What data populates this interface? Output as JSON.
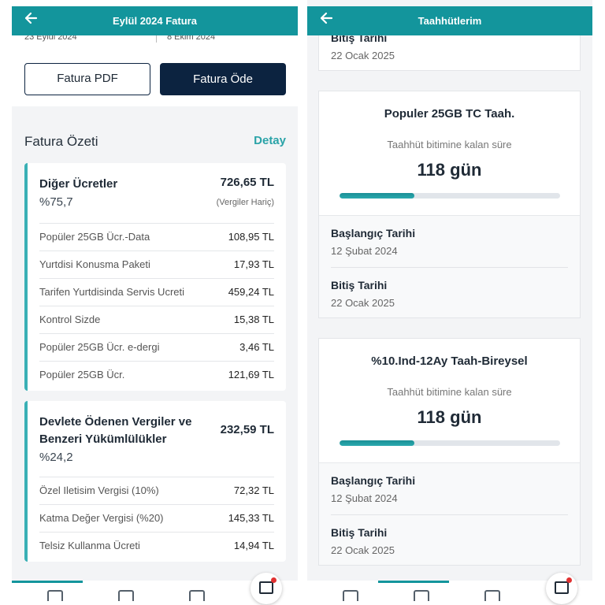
{
  "left": {
    "header": {
      "title": "Eylül 2024 Fatura"
    },
    "dates": [
      "23 Eylül 2024",
      "8 Ekim 2024"
    ],
    "buttons": {
      "pdf": "Fatura PDF",
      "pay": "Fatura Öde"
    },
    "summary": {
      "title": "Fatura Özeti",
      "link": "Detay"
    },
    "groups": [
      {
        "title": "Diğer Ücretler",
        "total": "726,65 TL",
        "percent": "%75,7",
        "note": "(Vergiler Hariç)",
        "items": [
          {
            "label": "Popüler 25GB Ücr.-Data",
            "amount": "108,95 TL"
          },
          {
            "label": "Yurtdisi Konusma Paketi",
            "amount": "17,93 TL"
          },
          {
            "label": "Tarifen Yurtdisinda Servis Ucreti",
            "amount": "459,24 TL"
          },
          {
            "label": "Kontrol Sizde",
            "amount": "15,38 TL"
          },
          {
            "label": "Popüler 25GB Ücr. e-dergi",
            "amount": "3,46 TL"
          },
          {
            "label": "Popüler 25GB Ücr.",
            "amount": "121,69 TL"
          }
        ]
      },
      {
        "title": "Devlete Ödenen Vergiler ve Benzeri Yükümlülükler",
        "total": "232,59 TL",
        "percent": "%24,2",
        "items": [
          {
            "label": "Özel Iletisim Vergisi (10%)",
            "amount": "72,32 TL"
          },
          {
            "label": "Katma Değer Vergisi (%20)",
            "amount": "145,33 TL"
          },
          {
            "label": "Telsiz Kullanma Ücreti",
            "amount": "14,94 TL"
          }
        ]
      }
    ]
  },
  "right": {
    "header": {
      "title": "Taahhütlerim"
    },
    "top_card": {
      "end_label": "Bitiş Tarihi",
      "end": "22 Ocak 2025"
    },
    "cards": [
      {
        "title": "Populer 25GB TC Taah.",
        "remaining_label": "Taahhüt bitimine kalan süre",
        "remaining": "118 gün",
        "progress": 34,
        "start_label": "Başlangıç Tarihi",
        "start": "12 Şubat 2024",
        "end_label": "Bitiş Tarihi",
        "end": "22 Ocak 2025"
      },
      {
        "title": "%10.Ind-12Ay Taah-Bireysel",
        "remaining_label": "Taahhüt bitimine kalan süre",
        "remaining": "118 gün",
        "progress": 34,
        "start_label": "Başlangıç Tarihi",
        "start": "12 Şubat 2024",
        "end_label": "Bitiş Tarihi",
        "end": "22 Ocak 2025"
      }
    ]
  }
}
